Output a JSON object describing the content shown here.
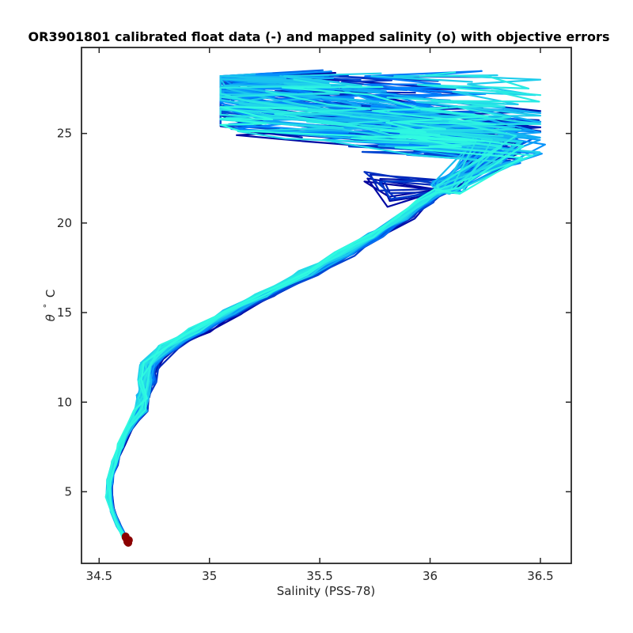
{
  "chart_data": {
    "type": "line",
    "title": "OR3901801 calibrated float data (-) and mapped salinity (o) with objective errors",
    "xlabel": "Salinity (PSS-78)",
    "ylabel_symbol": "θ",
    "ylabel_degree": "°",
    "ylabel_unit": "C",
    "xlim": [
      34.42,
      36.64
    ],
    "ylim": [
      1.0,
      29.8
    ],
    "xticks": [
      34.5,
      35,
      35.5,
      36,
      36.5
    ],
    "xtick_labels": [
      "34.5",
      "35",
      "35.5",
      "36",
      "36.5"
    ],
    "yticks": [
      5,
      10,
      15,
      20,
      25
    ],
    "ytick_labels": [
      "5",
      "10",
      "15",
      "20",
      "25"
    ],
    "grid": false,
    "colormap_start": "#00009c",
    "colormap_mid": "#0080ff",
    "colormap_end": "#30fbe0",
    "mapped_color": "#8b0000",
    "profile_count": 60,
    "deep_branch": [
      [
        34.62,
        2.4
      ],
      [
        34.585,
        3.2
      ],
      [
        34.56,
        4.0
      ],
      [
        34.545,
        4.8
      ],
      [
        34.55,
        5.6
      ],
      [
        34.57,
        6.6
      ],
      [
        34.6,
        7.6
      ],
      [
        34.64,
        8.6
      ],
      [
        34.69,
        9.6
      ],
      [
        34.7,
        10.3
      ],
      [
        34.72,
        11.2
      ],
      [
        34.73,
        12.1
      ],
      [
        34.82,
        13.1
      ],
      [
        34.95,
        14.0
      ],
      [
        35.1,
        15.0
      ],
      [
        35.25,
        16.0
      ],
      [
        35.45,
        17.2
      ],
      [
        35.62,
        18.3
      ],
      [
        35.75,
        19.3
      ],
      [
        35.88,
        20.3
      ],
      [
        35.98,
        21.2
      ],
      [
        36.05,
        21.8
      ]
    ],
    "mapped_salinity_points": [
      [
        34.62,
        2.45
      ],
      [
        34.625,
        2.35
      ],
      [
        34.63,
        2.25
      ],
      [
        34.632,
        2.15
      ],
      [
        34.635,
        2.3
      ],
      [
        34.62,
        2.5
      ],
      [
        34.628,
        2.2
      ]
    ]
  }
}
